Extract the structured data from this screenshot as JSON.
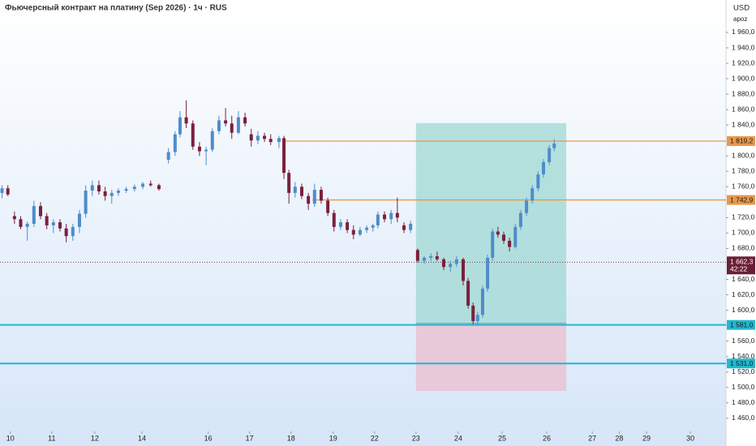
{
  "chart_data": {
    "type": "candlestick",
    "title": "Фьючерсный контракт на платину (Sep 2026) · 1ч · RUS",
    "currency": "USD",
    "scale_mode": "apoz",
    "up_color": "#4f8cc9",
    "down_color": "#7a1f3d",
    "x": [
      -0.2,
      -0.06,
      0.1,
      0.25,
      0.41,
      0.57,
      0.73,
      0.88,
      1.04,
      1.2,
      1.35,
      1.51,
      1.67,
      1.82,
      1.98,
      2.14,
      2.29,
      2.45,
      2.61,
      2.8,
      3.0,
      3.2,
      3.39,
      3.59,
      3.82,
      3.98,
      4.1,
      4.25,
      4.41,
      4.57,
      4.73,
      4.88,
      5.04,
      5.2,
      5.35,
      5.51,
      5.67,
      5.82,
      5.98,
      6.14,
      6.29,
      6.49,
      6.61,
      6.73,
      6.88,
      7.04,
      7.2,
      7.35,
      7.51,
      7.67,
      7.82,
      7.98,
      8.14,
      8.29,
      8.45,
      8.61,
      8.76,
      8.88,
      9.04,
      9.2,
      9.35,
      9.51,
      9.67,
      9.84,
      10.0,
      10.16,
      10.31,
      10.47,
      10.63,
      10.78,
      10.94,
      11.06,
      11.18,
      11.29,
      11.41,
      11.53,
      11.65,
      11.78,
      11.92,
      12.06,
      12.2,
      12.33,
      12.47,
      12.61,
      12.75,
      12.88,
      13.02,
      13.14
    ],
    "open": [
      1752,
      1758,
      1722,
      1718,
      1708,
      1712,
      1735,
      1722,
      1710,
      1714,
      1706,
      1696,
      1708,
      1725,
      1755,
      1762,
      1754,
      1748,
      1752,
      1755,
      1757,
      1760,
      1764,
      1762,
      1795,
      1805,
      1828,
      1850,
      1842,
      1812,
      1806,
      1808,
      1832,
      1846,
      1842,
      1830,
      1850,
      1828,
      1820,
      1826,
      1822,
      1818,
      1823,
      1778,
      1752,
      1760,
      1748,
      1738,
      1756,
      1742,
      1726,
      1708,
      1714,
      1704,
      1698,
      1704,
      1707,
      1710,
      1724,
      1718,
      1726,
      1710,
      1704,
      1678,
      1664,
      1668,
      1670,
      1666,
      1656,
      1660,
      1666,
      1638,
      1606,
      1586,
      1594,
      1628,
      1668,
      1702,
      1698,
      1690,
      1682,
      1708,
      1726,
      1742,
      1758,
      1776,
      1792,
      1810
    ],
    "high": [
      1762,
      1762,
      1728,
      1722,
      1715,
      1742,
      1740,
      1726,
      1718,
      1718,
      1712,
      1712,
      1730,
      1762,
      1768,
      1768,
      1760,
      1756,
      1758,
      1760,
      1763,
      1766,
      1768,
      1764,
      1810,
      1832,
      1858,
      1872,
      1846,
      1818,
      1812,
      1836,
      1852,
      1862,
      1852,
      1858,
      1856,
      1835,
      1832,
      1830,
      1828,
      1826,
      1826,
      1782,
      1766,
      1764,
      1752,
      1764,
      1760,
      1746,
      1730,
      1718,
      1718,
      1710,
      1708,
      1710,
      1712,
      1728,
      1728,
      1730,
      1746,
      1714,
      1716,
      1680,
      1670,
      1674,
      1676,
      1668,
      1664,
      1670,
      1668,
      1642,
      1610,
      1598,
      1632,
      1672,
      1706,
      1708,
      1702,
      1694,
      1712,
      1730,
      1746,
      1762,
      1780,
      1796,
      1814,
      1822
    ],
    "low": [
      1745,
      1748,
      1712,
      1705,
      1690,
      1708,
      1718,
      1705,
      1700,
      1702,
      1688,
      1690,
      1700,
      1720,
      1748,
      1750,
      1742,
      1738,
      1748,
      1752,
      1754,
      1757,
      1760,
      1755,
      1790,
      1800,
      1824,
      1836,
      1808,
      1800,
      1788,
      1805,
      1828,
      1838,
      1822,
      1828,
      1838,
      1812,
      1815,
      1818,
      1814,
      1810,
      1770,
      1738,
      1746,
      1744,
      1730,
      1734,
      1738,
      1722,
      1702,
      1704,
      1700,
      1692,
      1696,
      1700,
      1702,
      1706,
      1714,
      1712,
      1714,
      1700,
      1700,
      1662,
      1660,
      1664,
      1664,
      1652,
      1650,
      1656,
      1632,
      1602,
      1582,
      1581,
      1590,
      1624,
      1664,
      1694,
      1686,
      1676,
      1680,
      1704,
      1722,
      1738,
      1754,
      1772,
      1788,
      1806
    ],
    "close": [
      1758,
      1750,
      1718,
      1708,
      1712,
      1735,
      1722,
      1710,
      1714,
      1706,
      1696,
      1708,
      1725,
      1755,
      1762,
      1754,
      1748,
      1752,
      1755,
      1757,
      1760,
      1764,
      1762,
      1757,
      1805,
      1828,
      1850,
      1842,
      1812,
      1806,
      1808,
      1832,
      1846,
      1842,
      1830,
      1850,
      1842,
      1820,
      1826,
      1822,
      1818,
      1823,
      1778,
      1752,
      1760,
      1748,
      1738,
      1756,
      1742,
      1726,
      1708,
      1714,
      1704,
      1698,
      1704,
      1707,
      1710,
      1724,
      1718,
      1726,
      1720,
      1704,
      1712,
      1664,
      1668,
      1670,
      1666,
      1656,
      1660,
      1666,
      1638,
      1606,
      1586,
      1594,
      1628,
      1668,
      1702,
      1698,
      1690,
      1682,
      1708,
      1726,
      1742,
      1758,
      1776,
      1792,
      1810,
      1816
    ],
    "xlim": [
      -0.25,
      17.29
    ],
    "xticks": [
      {
        "value": 0,
        "label": "10"
      },
      {
        "value": 1,
        "label": "11"
      },
      {
        "value": 2.04,
        "label": "12"
      },
      {
        "value": 3.18,
        "label": "14"
      },
      {
        "value": 4.78,
        "label": "16"
      },
      {
        "value": 5.78,
        "label": "17"
      },
      {
        "value": 6.78,
        "label": "18"
      },
      {
        "value": 7.8,
        "label": "19"
      },
      {
        "value": 8.8,
        "label": "22"
      },
      {
        "value": 9.8,
        "label": "23"
      },
      {
        "value": 10.82,
        "label": "24"
      },
      {
        "value": 11.88,
        "label": "25"
      },
      {
        "value": 12.96,
        "label": "26"
      },
      {
        "value": 14.06,
        "label": "27"
      },
      {
        "value": 14.71,
        "label": "28"
      },
      {
        "value": 15.37,
        "label": "29"
      },
      {
        "value": 16.43,
        "label": "30"
      }
    ],
    "ylim": [
      1443,
      2002
    ],
    "yticks": [
      {
        "value": 1960,
        "label": "1 960,0"
      },
      {
        "value": 1940,
        "label": "1 940,0"
      },
      {
        "value": 1920,
        "label": "1 920,0"
      },
      {
        "value": 1900,
        "label": "1 900,0"
      },
      {
        "value": 1880,
        "label": "1 880,0"
      },
      {
        "value": 1860,
        "label": "1 860,0"
      },
      {
        "value": 1840,
        "label": "1 840,0"
      },
      {
        "value": 1800,
        "label": "1 800,0"
      },
      {
        "value": 1780,
        "label": "1 780,0"
      },
      {
        "value": 1760,
        "label": "1 760,0"
      },
      {
        "value": 1720,
        "label": "1 720,0"
      },
      {
        "value": 1700,
        "label": "1 700,0"
      },
      {
        "value": 1680,
        "label": "1 680,0"
      },
      {
        "value": 1640,
        "label": "1 640,0"
      },
      {
        "value": 1620,
        "label": "1 620,0"
      },
      {
        "value": 1600,
        "label": "1 600,0"
      },
      {
        "value": 1560,
        "label": "1 560,0"
      },
      {
        "value": 1540,
        "label": "1 540,0"
      },
      {
        "value": 1520,
        "label": "1 520,0"
      },
      {
        "value": 1500,
        "label": "1 500,0"
      },
      {
        "value": 1480,
        "label": "1 480,0"
      },
      {
        "value": 1460,
        "label": "1 460,0"
      }
    ],
    "price_lines": [
      {
        "value": 1819.2,
        "label": "1 819,2",
        "color": "#e8974a",
        "x_from": 6.61
      },
      {
        "value": 1742.9,
        "label": "1 742,9",
        "color": "#e8974a",
        "x_from": 7.3
      },
      {
        "value": 1581.0,
        "label": "1 581,0",
        "color": "#1fb8cf",
        "x_from": -0.25
      },
      {
        "value": 1531.0,
        "label": "1 531,0",
        "color": "#1fb8cf",
        "x_from": -0.25
      }
    ],
    "current_price": {
      "value": 1662.3,
      "label": "1 662,3",
      "countdown": "42:22",
      "color": "#6b1f35"
    },
    "position": {
      "x": [
        9.8,
        13.43
      ],
      "target": 1842.5,
      "entry": 1583,
      "stop": 1495.5,
      "profit_color": "#9fd8d3",
      "loss_color": "#e9c3d3"
    }
  }
}
